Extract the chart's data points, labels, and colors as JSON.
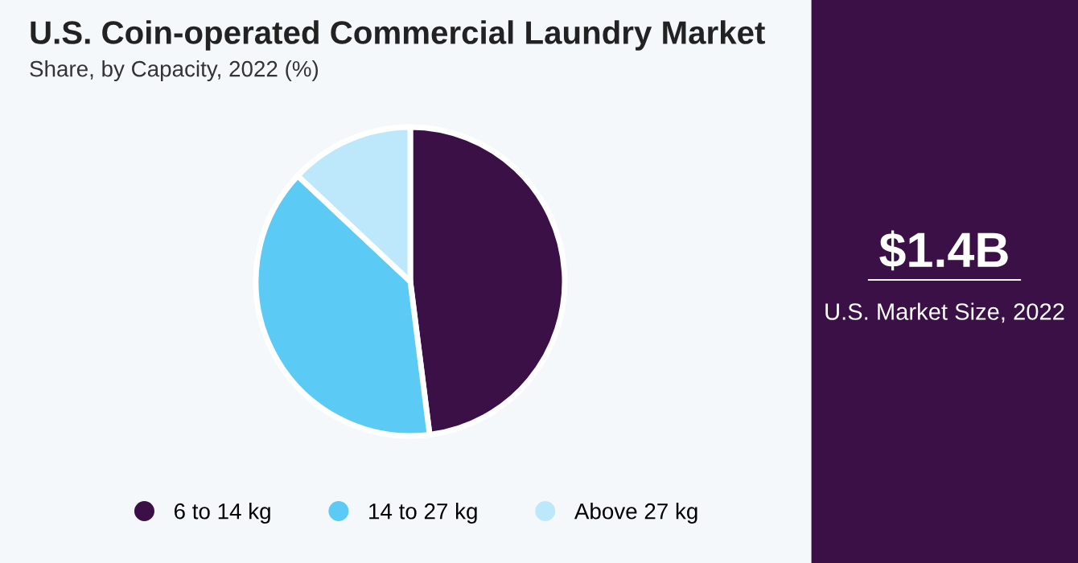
{
  "chart_data": {
    "type": "pie",
    "title": "U.S. Coin-operated Commercial Laundry Market",
    "subtitle": "Share, by Capacity, 2022 (%)",
    "categories": [
      "6 to 14 kg",
      "14 to 27 kg",
      "Above 27 kg"
    ],
    "values": [
      48,
      39,
      13
    ],
    "colors": [
      "#3a1046",
      "#5bcbf5",
      "#bde8fb"
    ],
    "legend": "bottom",
    "annotations": [
      "$1.4B",
      "U.S. Market Size, 2022"
    ]
  }
}
